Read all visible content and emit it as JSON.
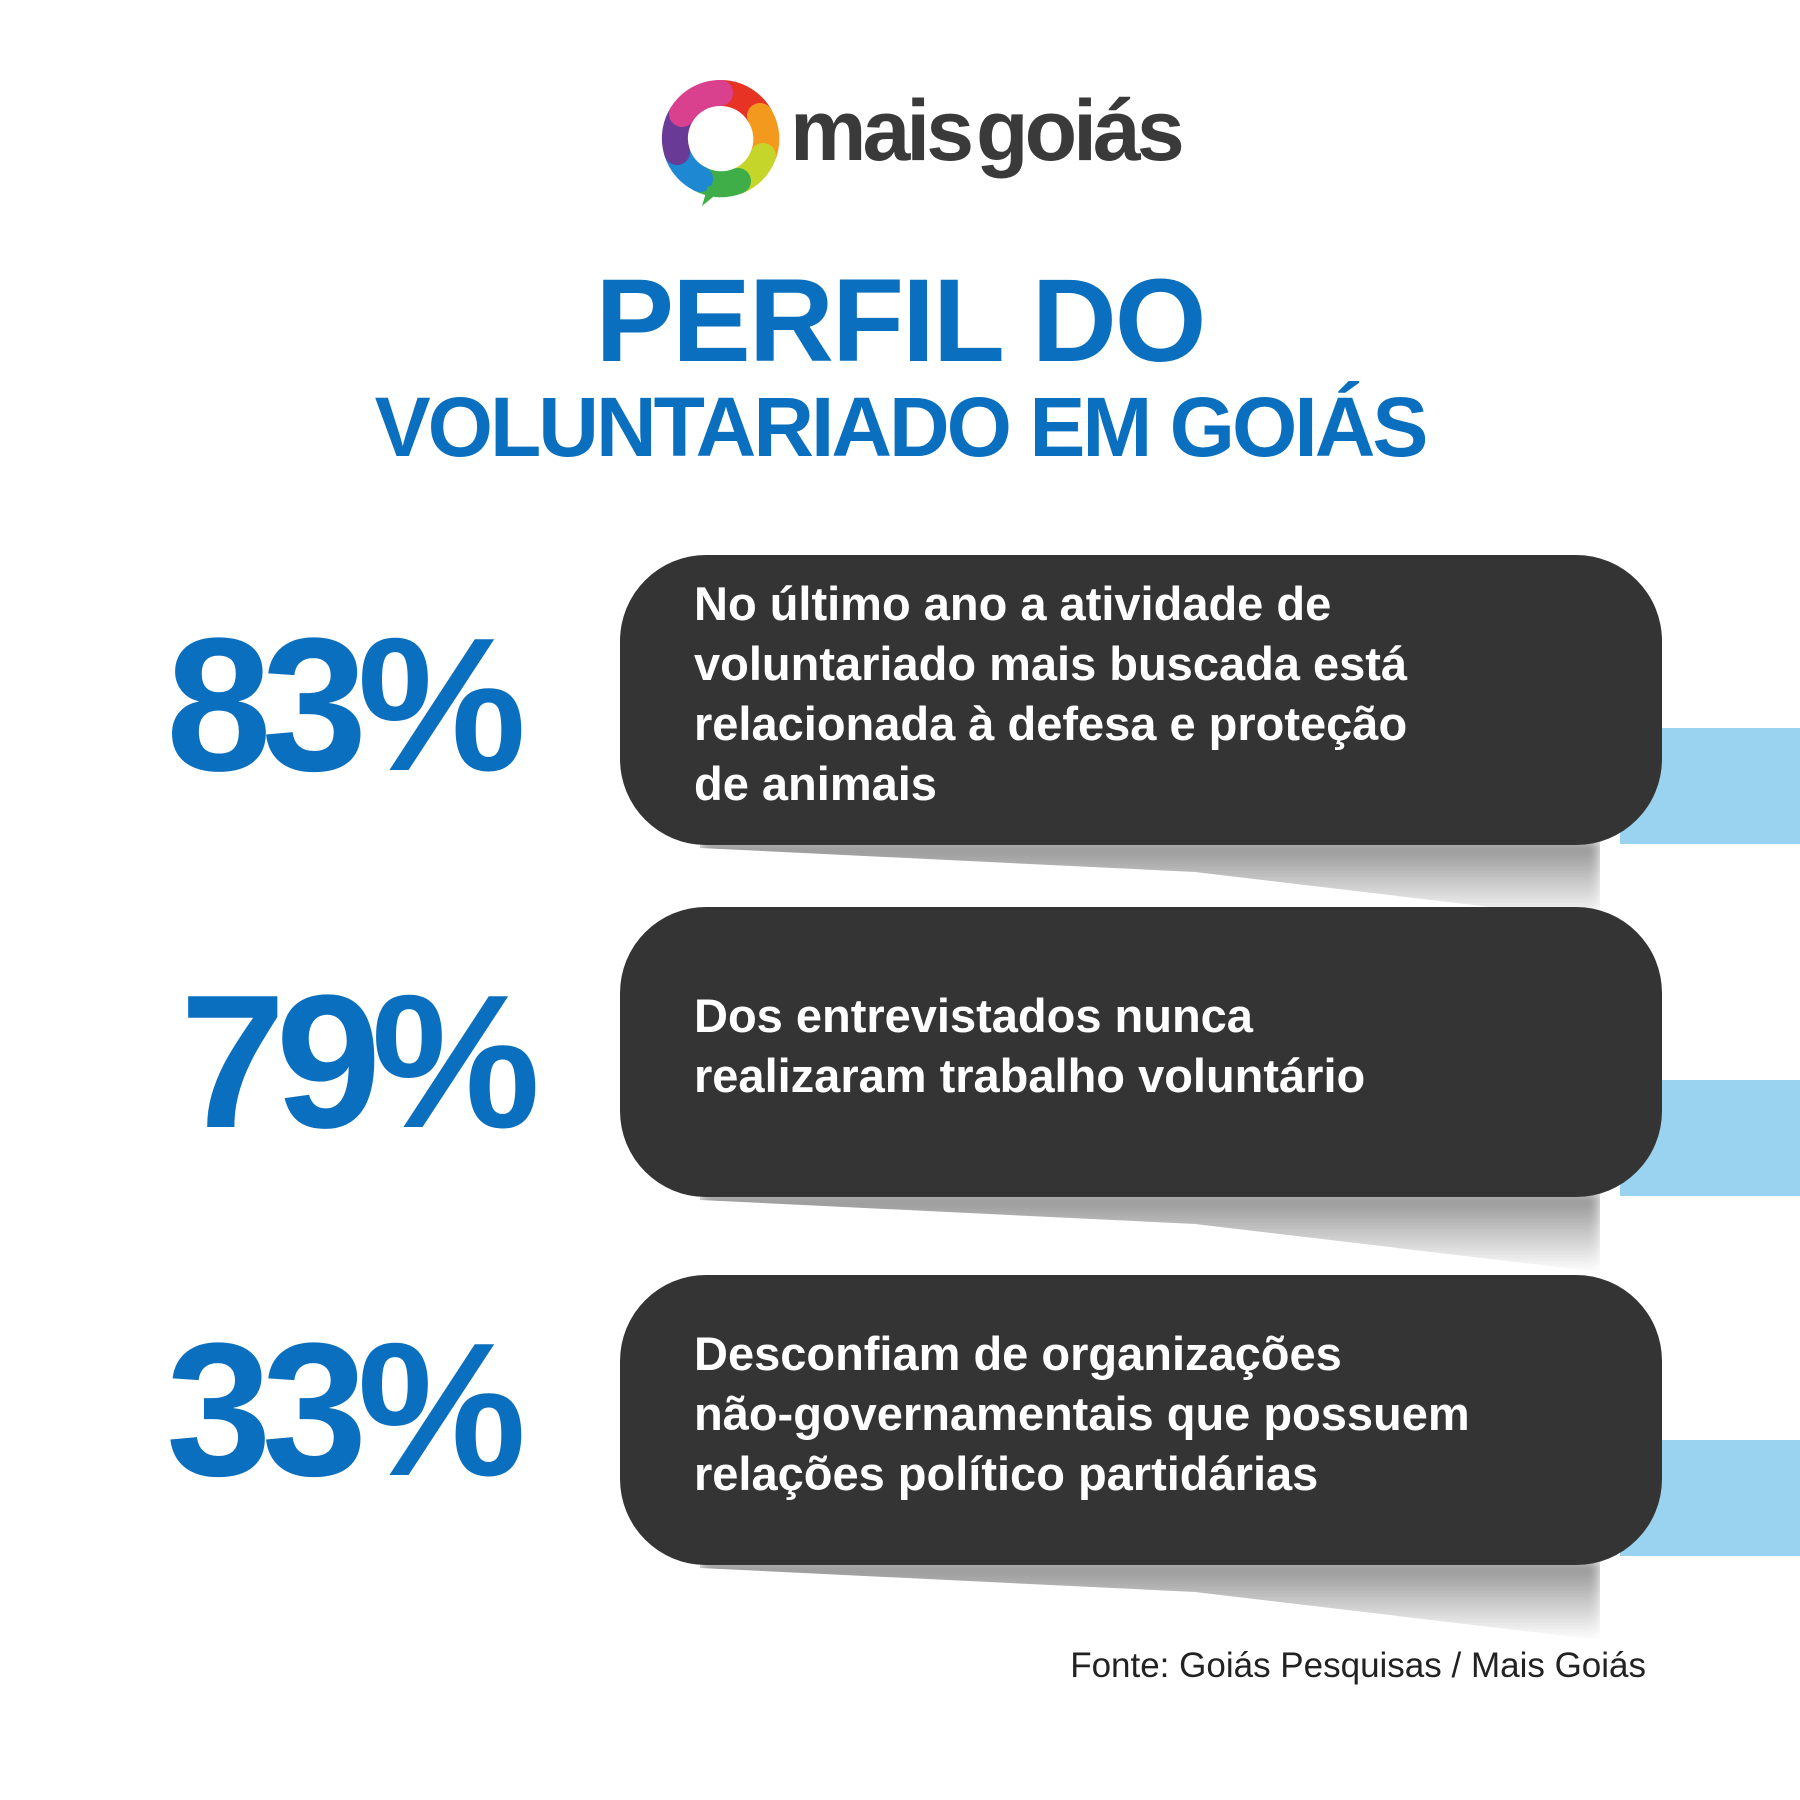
{
  "brand": {
    "logo_word_1": "mais",
    "logo_word_2": "goiás",
    "logo_icon": "rainbow-speech-ring-icon",
    "text_color": "#3a3a3a"
  },
  "title": {
    "line1": "PERFIL DO",
    "line2": "VOLUNTARIADO EM GOIÁS",
    "color": "#0a6fbf"
  },
  "stats": [
    {
      "percent": "83%",
      "description": "No último ano a atividade de\nvoluntariado mais buscada está\nrelacionada à defesa e proteção\nde animais"
    },
    {
      "percent": "79%",
      "description": "Dos entrevistados nunca\nrealizaram trabalho voluntário"
    },
    {
      "percent": "33%",
      "description": "Desconfiam de organizações\nnão-governamentais que possuem\nrelações político partidárias"
    }
  ],
  "colors": {
    "pill": "#343434",
    "accent": "#9ad3ef",
    "percent": "#0a6fbf"
  },
  "source": "Fonte: Goiás Pesquisas / Mais Goiás"
}
